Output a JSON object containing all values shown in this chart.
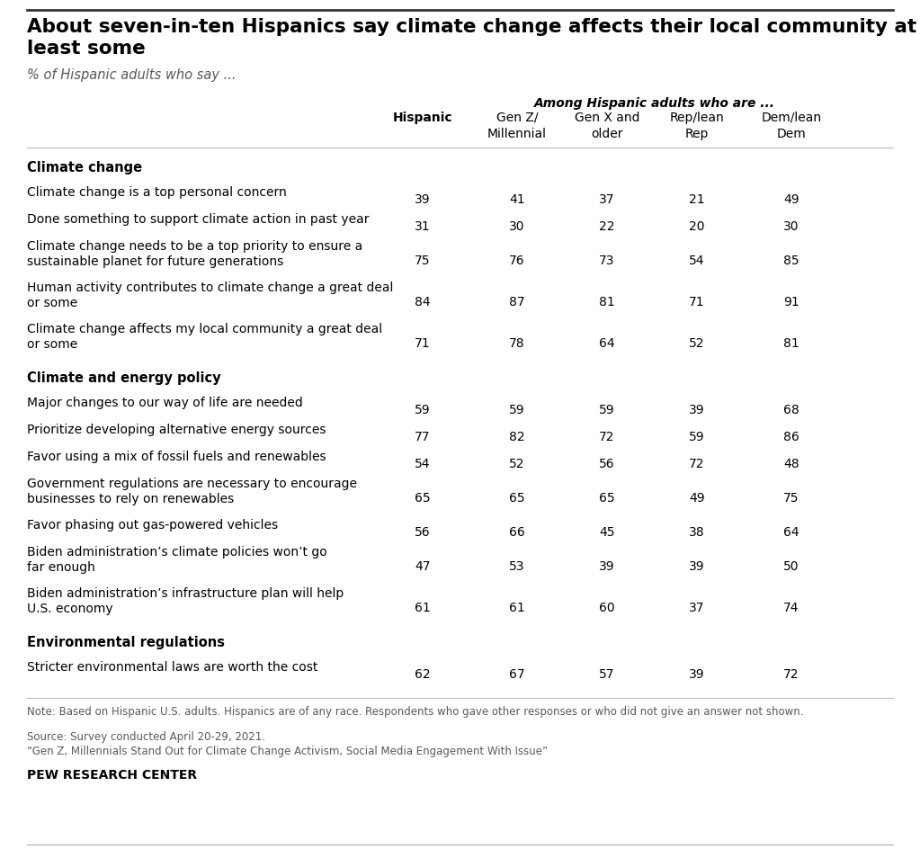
{
  "title_line1": "About seven-in-ten Hispanics say climate change affects their local community at",
  "title_line2": "least some",
  "subtitle": "% of Hispanic adults who say ...",
  "col_header_italic": "Among Hispanic adults who are ...",
  "col_headers": [
    "Hispanic",
    "Gen Z/\nMillennial",
    "Gen X and\nolder",
    "Rep/lean\nRep",
    "Dem/lean\nDem"
  ],
  "sections": [
    {
      "section_title": "Climate change",
      "rows": [
        {
          "label": "Climate change is a top personal concern",
          "values": [
            39,
            41,
            37,
            21,
            49
          ],
          "nlines": 1
        },
        {
          "label": "Done something to support climate action in past year",
          "values": [
            31,
            30,
            22,
            20,
            30
          ],
          "nlines": 1
        },
        {
          "label": "Climate change needs to be a top priority to ensure a\nsustainable planet for future generations",
          "values": [
            75,
            76,
            73,
            54,
            85
          ],
          "nlines": 2
        },
        {
          "label": "Human activity contributes to climate change a great deal\nor some",
          "values": [
            84,
            87,
            81,
            71,
            91
          ],
          "nlines": 2
        },
        {
          "label": "Climate change affects my local community a great deal\nor some",
          "values": [
            71,
            78,
            64,
            52,
            81
          ],
          "nlines": 2
        }
      ]
    },
    {
      "section_title": "Climate and energy policy",
      "rows": [
        {
          "label": "Major changes to our way of life are needed",
          "values": [
            59,
            59,
            59,
            39,
            68
          ],
          "nlines": 1
        },
        {
          "label": "Prioritize developing alternative energy sources",
          "values": [
            77,
            82,
            72,
            59,
            86
          ],
          "nlines": 1
        },
        {
          "label": "Favor using a mix of fossil fuels and renewables",
          "values": [
            54,
            52,
            56,
            72,
            48
          ],
          "nlines": 1
        },
        {
          "label": "Government regulations are necessary to encourage\nbusinesses to rely on renewables",
          "values": [
            65,
            65,
            65,
            49,
            75
          ],
          "nlines": 2
        },
        {
          "label": "Favor phasing out gas-powered vehicles",
          "values": [
            56,
            66,
            45,
            38,
            64
          ],
          "nlines": 1
        },
        {
          "label": "Biden administration’s climate policies won’t go\nfar enough",
          "values": [
            47,
            53,
            39,
            39,
            50
          ],
          "nlines": 2
        },
        {
          "label": "Biden administration’s infrastructure plan will help\nU.S. economy",
          "values": [
            61,
            61,
            60,
            37,
            74
          ],
          "nlines": 2
        }
      ]
    },
    {
      "section_title": "Environmental regulations",
      "rows": [
        {
          "label": "Stricter environmental laws are worth the cost",
          "values": [
            62,
            67,
            57,
            39,
            72
          ],
          "nlines": 1
        }
      ]
    }
  ],
  "note_line1": "Note: Based on Hispanic U.S. adults. Hispanics are of any race. Respondents who gave other responses or who did not give an answer not shown.",
  "note_line2": "Source: Survey conducted April 20-29, 2021.",
  "note_line3": "“Gen Z, Millennials Stand Out for Climate Change Activism, Social Media Engagement With Issue”",
  "source_label": "PEW RESEARCH CENTER",
  "bg_color": "#ffffff",
  "text_color": "#000000",
  "gray_text": "#595959",
  "note_color": "#595959"
}
